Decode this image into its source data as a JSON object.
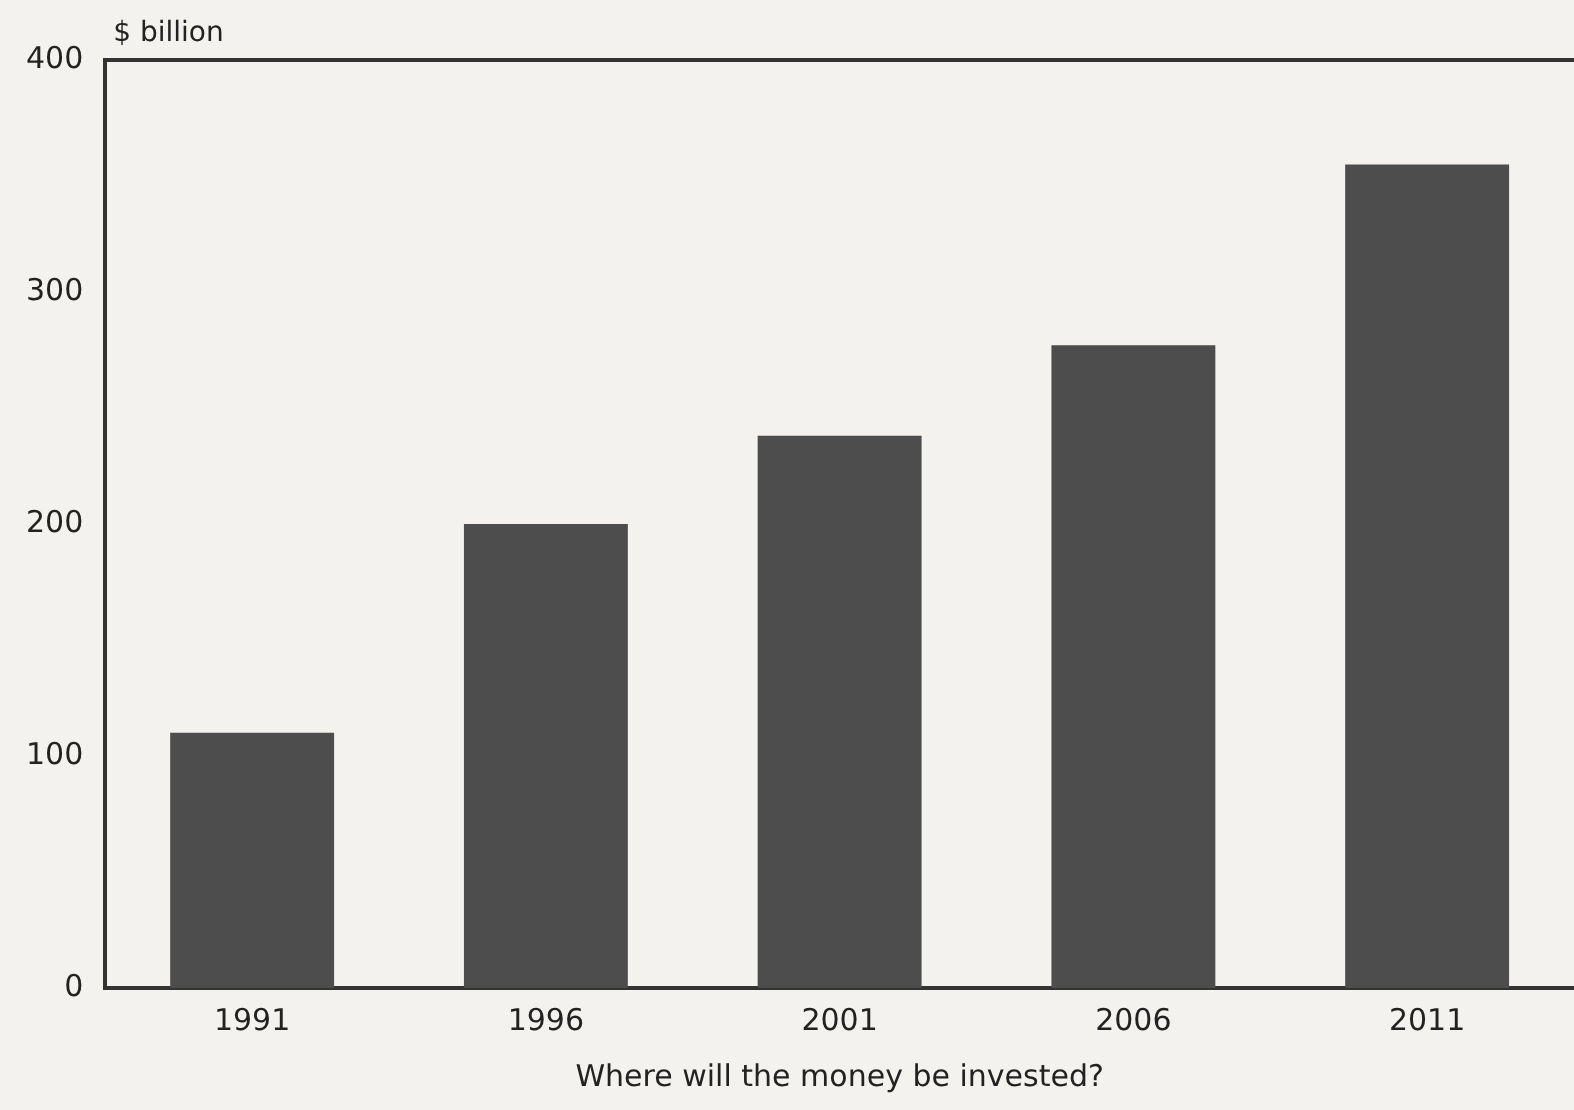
{
  "chart_data": {
    "type": "bar",
    "ylabel": "$ billion",
    "xlabel": "Where will the money be invested?",
    "categories": [
      "1991",
      "1996",
      "2001",
      "2006",
      "2011"
    ],
    "values": [
      110,
      200,
      238,
      277,
      355
    ],
    "color": "#4d4d4d",
    "ylim": [
      0,
      400
    ],
    "yticks": [
      0,
      100,
      200,
      300,
      400
    ],
    "grid": false,
    "legend": false
  }
}
